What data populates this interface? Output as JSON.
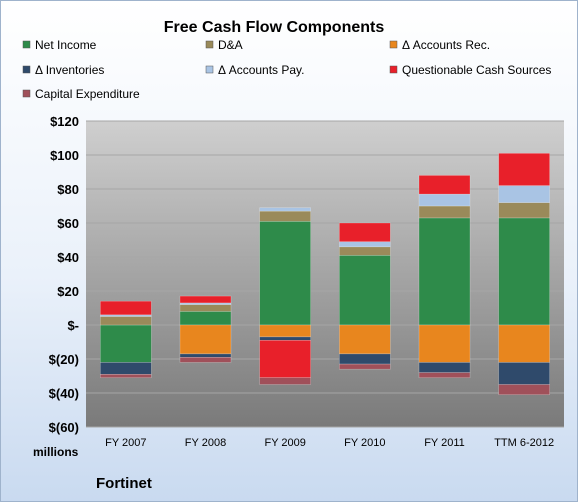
{
  "chart_data": {
    "type": "bar",
    "stacked": true,
    "title": "Free Cash Flow Components",
    "unit_label": "millions",
    "company": "Fortinet",
    "categories": [
      "FY 2007",
      "FY 2008",
      "FY 2009",
      "FY 2010",
      "FY 2011",
      "TTM 6-2012"
    ],
    "ylim": [
      -60,
      120
    ],
    "yticks": [
      120,
      100,
      80,
      60,
      40,
      20,
      0,
      -20,
      -40,
      -60
    ],
    "ytick_labels": [
      "$120",
      "$100",
      "$80",
      "$60",
      "$40",
      "$20",
      "$-",
      "$(20)",
      "$(40)",
      "$(60)"
    ],
    "legend_placement": "top",
    "series": [
      {
        "name": "Net Income",
        "color": "#2e8b4a",
        "values": [
          -22,
          8,
          61,
          41,
          63,
          63
        ]
      },
      {
        "name": "D&A",
        "color": "#9a8a5a",
        "values": [
          5,
          4,
          6,
          5,
          7,
          9
        ]
      },
      {
        "name": "Δ Accounts Rec.",
        "color": "#e8861e",
        "values": [
          0,
          -17,
          -7,
          -17,
          -22,
          -22
        ]
      },
      {
        "name": "Δ Inventories",
        "color": "#2f4a6b",
        "values": [
          -7,
          -2,
          -2,
          -6,
          -6,
          -13
        ]
      },
      {
        "name": "Δ Accounts Pay.",
        "color": "#a9c4e4",
        "values": [
          1,
          1,
          2,
          3,
          7,
          10
        ]
      },
      {
        "name": "Questionable Cash Sources",
        "color": "#e8202a",
        "values": [
          8,
          4,
          -22,
          11,
          11,
          19
        ]
      },
      {
        "name": "Capital Expenditure",
        "color": "#a0505a",
        "values": [
          -2,
          -3,
          -4,
          -3,
          -3,
          -6
        ]
      }
    ]
  }
}
